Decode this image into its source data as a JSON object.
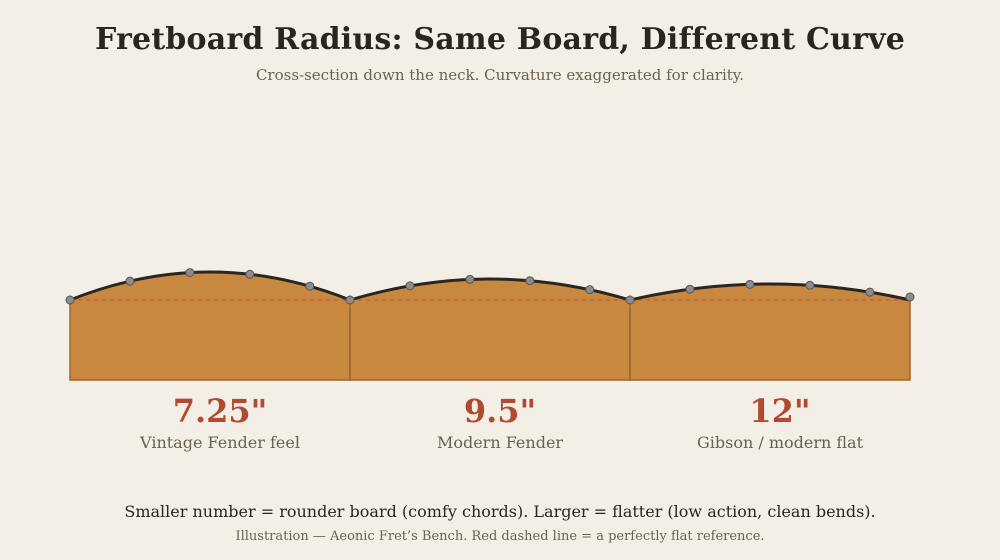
{
  "title": "Fretboard Radius: Same Board, Different Curve",
  "subtitle": "Cross-section down the neck. Curvature exaggerated for clarity.",
  "colors": {
    "background": "#f3efe6",
    "wood": "#c98840",
    "wood_edge": "#a0642a",
    "curve": "#2b2520",
    "fret_dot": "#8c8c8c",
    "flat_reference": "#c0543a",
    "value_text": "#b04a30"
  },
  "boards": [
    {
      "radius": "7.25\"",
      "label": "Vintage Fender feel",
      "curvature": "high"
    },
    {
      "radius": "9.5\"",
      "label": "Modern Fender",
      "curvature": "medium"
    },
    {
      "radius": "12\"",
      "label": "Gibson / modern flat",
      "curvature": "low"
    }
  ],
  "footer": {
    "main": "Smaller number = rounder board (comfy chords). Larger = flatter (low action, clean bends).",
    "note": "Illustration — Aeonic Fret’s Bench. Red dashed line = a perfectly flat reference."
  }
}
